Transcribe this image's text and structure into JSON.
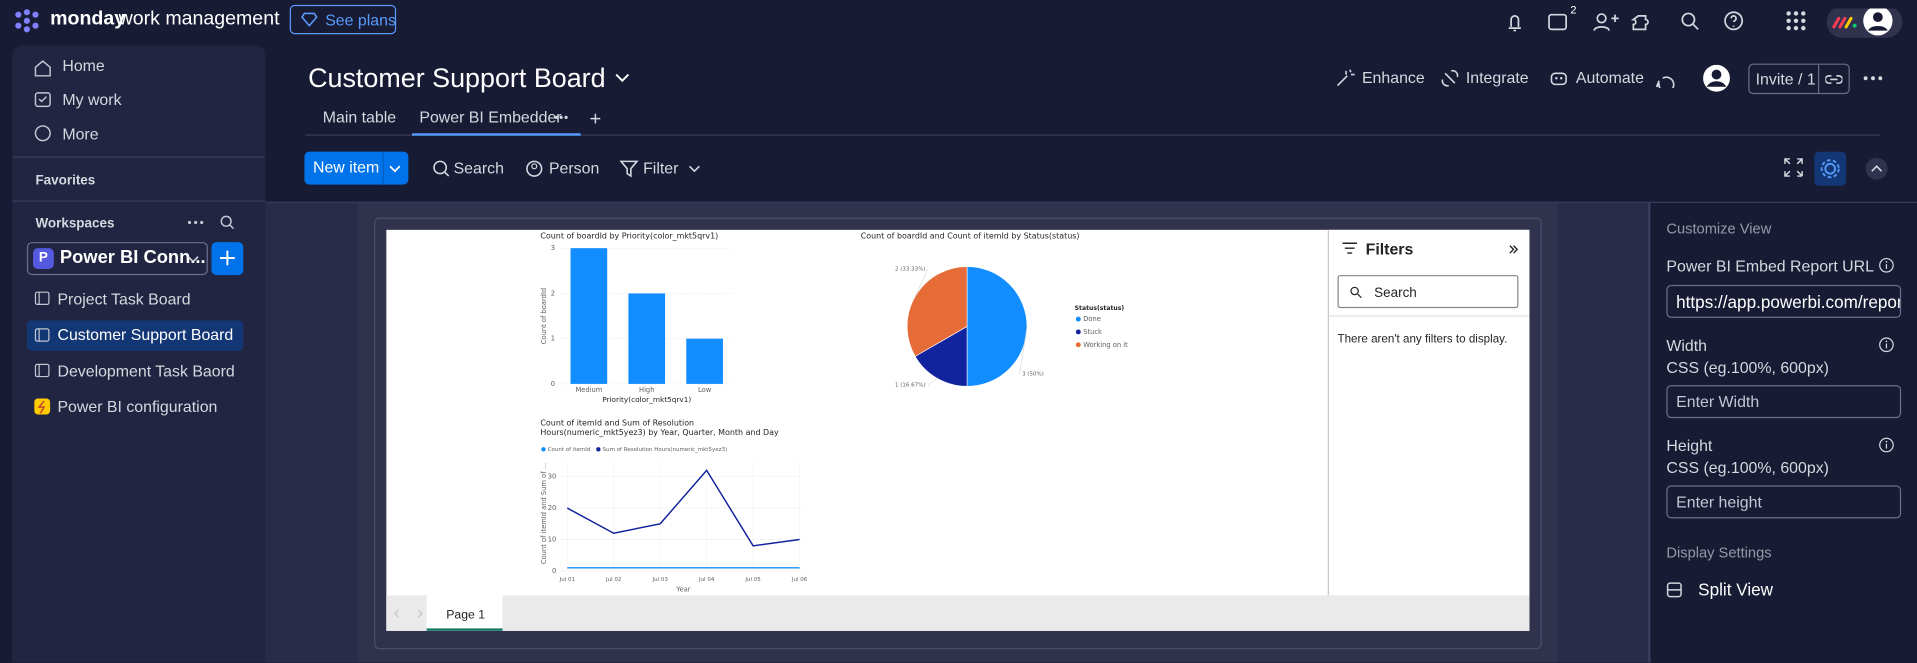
{
  "topbar": {
    "brand": "monday",
    "product": "work management",
    "see_plans": "See plans",
    "inbox_badge": "2"
  },
  "sidebar": {
    "nav": [
      "Home",
      "My work",
      "More"
    ],
    "favorites": "Favorites",
    "workspaces": "Workspaces",
    "workspace": {
      "initial": "P",
      "name": "Power BI Conn..."
    },
    "boards": [
      "Project Task Board",
      "Customer Support Board",
      "Development Task Baord",
      "Power BI configuration"
    ]
  },
  "header": {
    "title": "Customer Support Board",
    "actions": [
      "Enhance",
      "Integrate",
      "Automate"
    ],
    "invite": "Invite / 1",
    "tabs": [
      "Main table",
      "Power BI Embedder"
    ]
  },
  "toolbar": {
    "new_item": "New item",
    "tools": [
      "Search",
      "Person",
      "Filter"
    ]
  },
  "report": {
    "charts": [
      {
        "type": "bar",
        "title": "Count of boardId by Priority(color_mkt5qrv1)",
        "x_label": "Priority(color_mkt5qrv1)",
        "y_label": "Count of boardId",
        "categories": [
          "Medium",
          "High",
          "Low"
        ],
        "values": [
          3,
          2,
          1
        ],
        "color": "#118dff",
        "ylim": [
          0,
          3
        ],
        "yticks": [
          0,
          1,
          2,
          3
        ],
        "grid": true
      },
      {
        "type": "pie",
        "title": "Count of boardId and Count of itemId by Status(status)",
        "legend_title": "Status(status)",
        "categories": [
          "Done",
          "Stuck",
          "Working on it"
        ],
        "values": [
          3,
          1,
          2
        ],
        "value_labels": [
          "3 (50%)",
          "1 (16.67%)",
          "2 (33.33%)"
        ],
        "colors": [
          "#118dff",
          "#12239e",
          "#e66c37"
        ]
      },
      {
        "type": "line",
        "title": "Count of itemId and Sum of Resolution Hours(numeric_mkt5yez3) by Year, Quarter, Month and Day",
        "x_label": "Year",
        "y_label": "Count of itemId and Sum of ...",
        "categories": [
          "Jul 01",
          "Jul 02",
          "Jul 03",
          "Jul 04",
          "Jul 05",
          "Jul 06"
        ],
        "series": [
          {
            "name": "Count of itemId",
            "color": "#118dff",
            "values": [
              1,
              1,
              1,
              1,
              1,
              1
            ]
          },
          {
            "name": "Sum of Resolution Hours(numeric_mkt5yez3)",
            "color": "#12239e",
            "values": [
              20,
              12,
              15,
              32,
              8,
              10
            ]
          }
        ],
        "ylim": [
          0,
          35
        ],
        "yticks": [
          0,
          10,
          20,
          30
        ],
        "grid": true
      }
    ],
    "filters": {
      "title": "Filters",
      "search": "Search",
      "empty": "There aren't any filters to display."
    },
    "page_tab": "Page 1"
  },
  "settings": {
    "title": "Customize View",
    "url_label": "Power BI Embed Report URL",
    "url_value": "https://app.powerbi.com/reportl",
    "width_label": "Width",
    "width_hint": "CSS (eg.100%, 600px)",
    "width_placeholder": "Enter Width",
    "height_label": "Height",
    "height_hint": "CSS (eg.100%, 600px)",
    "height_placeholder": "Enter height",
    "display_title": "Display Settings",
    "split_view": "Split View"
  }
}
